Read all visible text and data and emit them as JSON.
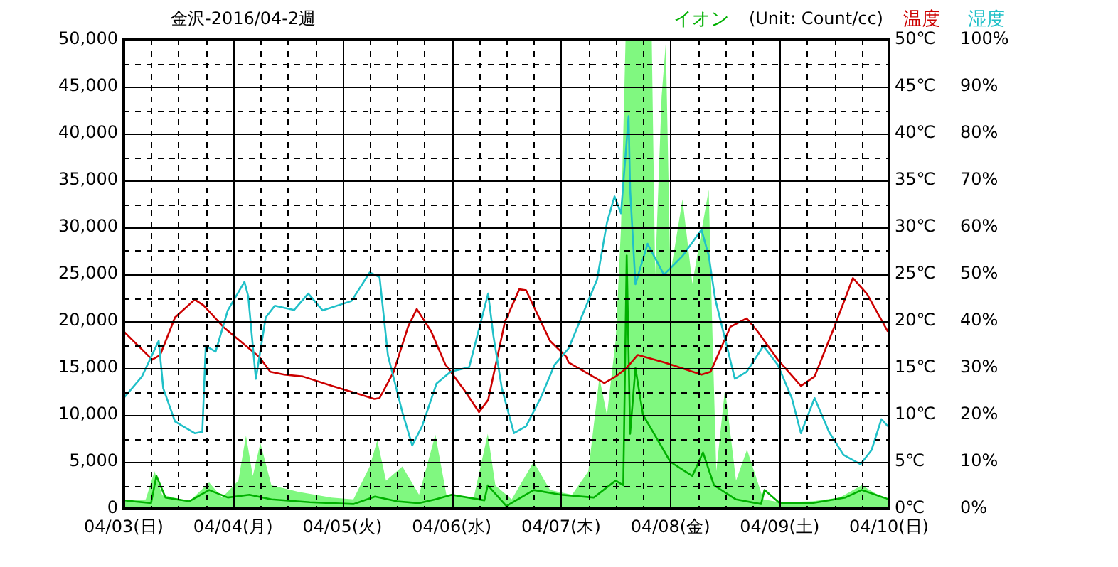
{
  "chart_data": {
    "type": "line",
    "title": "金沢-2016/04-2週",
    "annotations": [
      "(Unit: Count/cc)"
    ],
    "xlim": [
      "2016-04-03",
      "2016-04-10"
    ],
    "xticks": [
      {
        "value": "2016-04-03",
        "label": "04/03(日)"
      },
      {
        "value": "2016-04-03T06:00",
        "label": null
      },
      {
        "value": "2016-04-03T12:00",
        "label": null
      },
      {
        "value": "2016-04-03T18:00",
        "label": null
      },
      {
        "value": "2016-04-04",
        "label": "04/04(月)"
      },
      {
        "value": "2016-04-04T06:00",
        "label": null
      },
      {
        "value": "2016-04-04T12:00",
        "label": null
      },
      {
        "value": "2016-04-04T18:00",
        "label": null
      },
      {
        "value": "2016-04-05",
        "label": "04/05(火)"
      },
      {
        "value": "2016-04-05T06:00",
        "label": null
      },
      {
        "value": "2016-04-05T12:00",
        "label": null
      },
      {
        "value": "2016-04-05T18:00",
        "label": null
      },
      {
        "value": "2016-04-06",
        "label": "04/06(水)"
      },
      {
        "value": "2016-04-06T06:00",
        "label": null
      },
      {
        "value": "2016-04-06T12:00",
        "label": null
      },
      {
        "value": "2016-04-06T18:00",
        "label": null
      },
      {
        "value": "2016-04-07",
        "label": "04/07(木)"
      },
      {
        "value": "2016-04-07T06:00",
        "label": null
      },
      {
        "value": "2016-04-07T12:00",
        "label": null
      },
      {
        "value": "2016-04-07T18:00",
        "label": null
      },
      {
        "value": "2016-04-08",
        "label": "04/08(金)"
      },
      {
        "value": "2016-04-08T06:00",
        "label": null
      },
      {
        "value": "2016-04-08T12:00",
        "label": null
      },
      {
        "value": "2016-04-08T18:00",
        "label": null
      },
      {
        "value": "2016-04-09",
        "label": "04/09(土)"
      },
      {
        "value": "2016-04-09T06:00",
        "label": null
      },
      {
        "value": "2016-04-09T12:00",
        "label": null
      },
      {
        "value": "2016-04-09T18:00",
        "label": null
      },
      {
        "value": "2016-04-10",
        "label": "04/10(日)"
      }
    ],
    "ylim": [
      0,
      50000
    ],
    "yticks": [
      0,
      {
        "value": 2500,
        "label": null
      },
      {
        "value": 5000,
        "label": "5,000"
      },
      {
        "value": 7500,
        "label": null
      },
      {
        "value": 10000,
        "label": "10,000"
      },
      {
        "value": 12500,
        "label": null
      },
      {
        "value": 15000,
        "label": "15,000"
      },
      {
        "value": 17500,
        "label": null
      },
      {
        "value": 20000,
        "label": "20,000"
      },
      {
        "value": 22500,
        "label": null
      },
      {
        "value": 25000,
        "label": "25,000"
      },
      {
        "value": 27500,
        "label": null
      },
      {
        "value": 30000,
        "label": "30,000"
      },
      {
        "value": 32500,
        "label": null
      },
      {
        "value": 35000,
        "label": "35,000"
      },
      {
        "value": 37500,
        "label": null
      },
      {
        "value": 40000,
        "label": "40,000"
      },
      {
        "value": 42500,
        "label": null
      },
      {
        "value": 45000,
        "label": "45,000"
      },
      {
        "value": 47500,
        "label": null
      },
      {
        "value": 50000,
        "label": "50,000"
      }
    ],
    "y2lim": [
      0,
      50
    ],
    "y2ticks": [
      {
        "value": 0,
        "label": "0℃"
      },
      {
        "value": 5,
        "label": "5℃"
      },
      {
        "value": 10,
        "label": "10℃"
      },
      {
        "value": 15,
        "label": "15℃"
      },
      {
        "value": 20,
        "label": "20℃"
      },
      {
        "value": 25,
        "label": "25℃"
      },
      {
        "value": 30,
        "label": "30℃"
      },
      {
        "value": 35,
        "label": "35℃"
      },
      {
        "value": 40,
        "label": "40℃"
      },
      {
        "value": 45,
        "label": "45℃"
      },
      {
        "value": 50,
        "label": "50℃"
      }
    ],
    "y3lim": [
      0,
      100
    ],
    "y3ticks": [
      {
        "value": 0,
        "label": "0%"
      },
      {
        "value": 10,
        "label": "10%"
      },
      {
        "value": 20,
        "label": "20%"
      },
      {
        "value": 30,
        "label": "30%"
      },
      {
        "value": 40,
        "label": "40%"
      },
      {
        "value": 50,
        "label": "50%"
      },
      {
        "value": 60,
        "label": "60%"
      },
      {
        "value": 70,
        "label": "70%"
      },
      {
        "value": 80,
        "label": "80%"
      },
      {
        "value": 90,
        "label": "90%"
      },
      {
        "value": 100,
        "label": "100%"
      }
    ],
    "grid": true,
    "legend": false,
    "marker": "none",
    "line_style": "solid",
    "series": [
      {
        "type": "area",
        "color": "#80f880",
        "x": [
          "2016-04-03T00:00",
          "2016-04-03T04:50",
          "2016-04-03T06:45",
          "2016-04-03T08:25",
          "2016-04-03T14:25",
          "2016-04-03T18:45",
          "2016-04-03T21:35",
          "2016-04-04T01:10",
          "2016-04-04T02:50",
          "2016-04-04T04:20",
          "2016-04-04T06:00",
          "2016-04-04T08:25",
          "2016-04-04T14:25",
          "2016-04-04T21:35",
          "2016-04-05T02:25",
          "2016-04-05T06:00",
          "2016-04-05T07:40",
          "2016-04-05T09:35",
          "2016-04-05T13:10",
          "2016-04-05T16:50",
          "2016-04-05T20:25",
          "2016-04-05T22:50",
          "2016-04-06T04:50",
          "2016-04-06T07:55",
          "2016-04-06T09:35",
          "2016-04-06T13:10",
          "2016-04-06T18:00",
          "2016-04-06T21:35",
          "2016-04-07T02:25",
          "2016-04-07T06:00",
          "2016-04-07T08:25",
          "2016-04-07T10:05",
          "2016-04-07T12:00",
          "2016-04-07T13:10",
          "2016-04-07T14:10",
          "2016-04-07T19:55",
          "2016-04-07T20:40",
          "2016-04-07T22:05",
          "2016-04-07T23:00",
          "2016-04-08T00:00",
          "2016-04-08T02:40",
          "2016-04-08T04:50",
          "2016-04-08T08:25",
          "2016-04-08T09:10",
          "2016-04-08T10:05",
          "2016-04-08T12:00",
          "2016-04-08T14:25",
          "2016-04-08T16:50",
          "2016-04-08T20:25",
          "2016-04-09T00:00",
          "2016-04-09T07:10",
          "2016-04-09T13:10",
          "2016-04-09T18:00",
          "2016-04-10T00:00"
        ],
        "values": [
          700,
          1000,
          4000,
          1500,
          800,
          2800,
          1200,
          3000,
          7800,
          3500,
          7000,
          2500,
          1800,
          1200,
          1000,
          4500,
          7300,
          3000,
          4500,
          1500,
          7900,
          1500,
          1200,
          8000,
          2500,
          1000,
          5000,
          2000,
          1500,
          4000,
          14000,
          10000,
          18000,
          30000,
          50000,
          50000,
          25000,
          44000,
          49700,
          25000,
          33000,
          24000,
          34000,
          20000,
          4000,
          12800,
          3000,
          6300,
          1000,
          700,
          800,
          1200,
          2500,
          800
        ]
      },
      {
        "type": "line",
        "name": "イオン",
        "color": "#00b000",
        "x": [
          "2016-04-03T00:00",
          "2016-04-03T06:00",
          "2016-04-03T07:10",
          "2016-04-03T09:10",
          "2016-04-03T14:25",
          "2016-04-03T18:45",
          "2016-04-03T22:50",
          "2016-04-04T03:35",
          "2016-04-04T08:25",
          "2016-04-04T16:50",
          "2016-04-05T02:25",
          "2016-04-05T07:10",
          "2016-04-05T12:00",
          "2016-04-05T16:50",
          "2016-04-05T20:25",
          "2016-04-06T00:00",
          "2016-04-06T07:10",
          "2016-04-06T07:55",
          "2016-04-06T12:00",
          "2016-04-06T18:00",
          "2016-04-07T00:00",
          "2016-04-07T07:10",
          "2016-04-07T12:00",
          "2016-04-07T13:40",
          "2016-04-07T14:25",
          "2016-04-07T15:10",
          "2016-04-07T16:20",
          "2016-04-07T18:00",
          "2016-04-07T20:25",
          "2016-04-08T00:00",
          "2016-04-08T04:50",
          "2016-04-08T07:10",
          "2016-04-08T09:35",
          "2016-04-08T14:25",
          "2016-04-08T19:55",
          "2016-04-08T20:40",
          "2016-04-09T00:00",
          "2016-04-09T07:10",
          "2016-04-09T14:25",
          "2016-04-09T18:00",
          "2016-04-10T00:00"
        ],
        "values": [
          900,
          600,
          3500,
          1200,
          800,
          2000,
          1200,
          1500,
          1000,
          700,
          500,
          1300,
          800,
          600,
          1000,
          1500,
          900,
          2500,
          300,
          2000,
          1500,
          1200,
          3000,
          2500,
          27000,
          8000,
          15000,
          10000,
          8000,
          5000,
          3500,
          6000,
          2500,
          1000,
          500,
          2000,
          600,
          600,
          1200,
          2000,
          1000
        ]
      },
      {
        "type": "line",
        "name": "温度",
        "color": "#cc0000",
        "axis": "y2",
        "x": [
          "2016-04-03T00:00",
          "2016-04-03T06:15",
          "2016-04-03T08:00",
          "2016-04-03T11:15",
          "2016-04-03T15:35",
          "2016-04-03T17:30",
          "2016-04-03T21:50",
          "2016-04-04T04:00",
          "2016-04-04T05:45",
          "2016-04-04T08:10",
          "2016-04-04T11:15",
          "2016-04-04T15:20",
          "2016-04-04T21:40",
          "2016-04-05T03:50",
          "2016-04-05T07:00",
          "2016-04-05T08:10",
          "2016-04-05T11:15",
          "2016-04-05T14:25",
          "2016-04-05T16:20",
          "2016-04-05T19:30",
          "2016-04-05T22:35",
          "2016-04-06T02:50",
          "2016-04-06T06:00",
          "2016-04-06T08:00",
          "2016-04-06T11:40",
          "2016-04-06T14:50",
          "2016-04-06T16:20",
          "2016-04-06T21:35",
          "2016-04-07T01:10",
          "2016-04-07T01:40",
          "2016-04-07T09:30",
          "2016-04-07T12:00",
          "2016-04-07T14:10",
          "2016-04-07T16:50",
          "2016-04-07T22:40",
          "2016-04-08T06:50",
          "2016-04-08T08:50",
          "2016-04-08T13:10",
          "2016-04-08T16:45",
          "2016-04-08T19:10",
          "2016-04-08T23:35",
          "2016-04-09T04:40",
          "2016-04-09T07:40",
          "2016-04-09T12:00",
          "2016-04-09T16:05",
          "2016-04-09T19:10",
          "2016-04-09T23:45"
        ],
        "values": [
          18.9,
          15.9,
          16.4,
          20.4,
          22.3,
          21.7,
          19.4,
          16.9,
          16.2,
          14.6,
          14.3,
          14.1,
          13.1,
          12.2,
          11.7,
          11.8,
          14.6,
          19.4,
          21.3,
          18.9,
          15.4,
          12.6,
          10.3,
          11.6,
          19.9,
          23.4,
          23.3,
          17.9,
          16.2,
          15.6,
          13.4,
          14.1,
          14.9,
          16.4,
          15.6,
          14.3,
          14.6,
          19.4,
          20.3,
          18.9,
          15.9,
          13.1,
          14.1,
          19.4,
          24.6,
          22.9,
          18.9
        ]
      },
      {
        "type": "line",
        "name": "湿度",
        "color": "#20c0c8",
        "axis": "y3",
        "x": [
          "2016-04-03T00:00",
          "2016-04-03T04:00",
          "2016-04-03T07:40",
          "2016-04-03T08:40",
          "2016-04-03T11:15",
          "2016-04-03T15:35",
          "2016-04-03T17:15",
          "2016-04-03T18:00",
          "2016-04-03T20:10",
          "2016-04-03T22:50",
          "2016-04-04T02:30",
          "2016-04-04T03:20",
          "2016-04-04T05:00",
          "2016-04-04T07:10",
          "2016-04-04T09:10",
          "2016-04-04T13:25",
          "2016-04-04T16:30",
          "2016-04-04T19:40",
          "2016-04-05T02:00",
          "2016-04-05T06:00",
          "2016-04-05T08:10",
          "2016-04-05T10:00",
          "2016-04-05T13:10",
          "2016-04-05T15:20",
          "2016-04-05T17:30",
          "2016-04-05T20:40",
          "2016-04-05T23:45",
          "2016-04-06T03:50",
          "2016-04-06T08:00",
          "2016-04-06T09:10",
          "2016-04-06T11:00",
          "2016-04-06T13:40",
          "2016-04-06T16:20",
          "2016-04-06T19:30",
          "2016-04-06T22:35",
          "2016-04-07T01:40",
          "2016-04-07T07:55",
          "2016-04-07T10:05",
          "2016-04-07T11:45",
          "2016-04-07T13:10",
          "2016-04-07T14:50",
          "2016-04-07T15:10",
          "2016-04-07T16:20",
          "2016-04-07T19:00",
          "2016-04-07T22:35",
          "2016-04-08T02:40",
          "2016-04-08T06:50",
          "2016-04-08T08:25",
          "2016-04-08T09:50",
          "2016-04-08T14:10",
          "2016-04-08T16:45",
          "2016-04-08T20:25",
          "2016-04-08T23:35",
          "2016-04-09T02:40",
          "2016-04-09T04:40",
          "2016-04-09T07:40",
          "2016-04-09T10:50",
          "2016-04-09T14:00",
          "2016-04-09T17:45",
          "2016-04-09T20:10",
          "2016-04-09T22:20",
          "2016-04-09T23:45"
        ],
        "values": [
          23.6,
          28.2,
          35.8,
          25.7,
          18.6,
          16.1,
          16.4,
          34.7,
          33.5,
          42.3,
          48.4,
          45.3,
          27.7,
          40.8,
          43.3,
          42.4,
          45.9,
          42.3,
          44.3,
          50.4,
          49.4,
          32.7,
          20.6,
          13.5,
          17.6,
          26.7,
          29.2,
          30.2,
          45.9,
          36.8,
          25.7,
          16.1,
          17.6,
          23.6,
          30.7,
          34.2,
          48.9,
          61.0,
          66.6,
          63.0,
          83.7,
          68.1,
          47.9,
          56.5,
          49.9,
          53.9,
          59.5,
          54.0,
          44.8,
          27.7,
          29.2,
          34.7,
          30.7,
          23.6,
          16.1,
          23.6,
          16.4,
          11.5,
          9.5,
          12.5,
          19.1,
          17.6
        ]
      }
    ]
  }
}
